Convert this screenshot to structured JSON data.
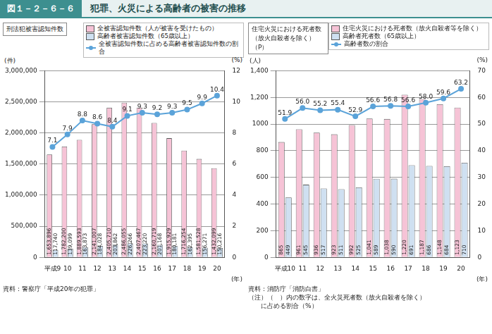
{
  "header": {
    "number": "図１－２－６－６",
    "title": "犯罪、火災による高齢者の被害の推移"
  },
  "chart_data": [
    {
      "type": "bar",
      "title": "刑法犯被害認知件数",
      "ylabel": "(件)",
      "y2label": "(%)",
      "xlabel": "(年)",
      "categories": [
        "平成9",
        "10",
        "11",
        "12",
        "13",
        "14",
        "15",
        "16",
        "17",
        "18",
        "19",
        "20"
      ],
      "series": [
        {
          "name": "全被害認知件数（人が被害を受けたもの）",
          "type": "bar",
          "color": "#f6c3d6",
          "values": [
            1653896,
            1782200,
            1889593,
            2141007,
            2405710,
            2486055,
            2407467,
            2160719,
            1915929,
            1716254,
            1581528,
            1432099
          ],
          "value_labels": [
            "1,653,896",
            "1,782,200",
            "1,889,593",
            "2,141,007",
            "2,405,710",
            "2,486,055",
            "2,407,467",
            "2,160,719",
            "1,915,929",
            "1,716,254",
            "1,581,528",
            "1,432,099"
          ]
        },
        {
          "name": "高齢者被害認知件数（65歳以上）",
          "type": "bar",
          "color": "#cfe0f1",
          "values": [
            117740,
            139099,
            163873,
            184028,
            203862,
            226266,
            223220,
            201168,
            180181,
            162395,
            156271,
            150216
          ],
          "value_labels": [
            "117,740",
            "139,099",
            "163,873",
            "184,028",
            "203,862",
            "226,266",
            "223,220",
            "201,168",
            "180,181",
            "162,395",
            "156,271",
            "150,216"
          ]
        },
        {
          "name": "全被害認知件数に占める高齢者被害認知件数の割合",
          "type": "line",
          "axis": "y2",
          "color": "#5ba3d9",
          "marker": "circle",
          "values": [
            7.1,
            7.9,
            8.8,
            8.6,
            8.4,
            9.1,
            9.3,
            9.2,
            9.3,
            9.5,
            9.9,
            10.4
          ],
          "value_labels": [
            "7.1",
            "7.9",
            "8.8",
            "8.6",
            "8.4",
            "9.1",
            "9.3",
            "9.2",
            "9.3",
            "9.5",
            "9.9",
            "10.4"
          ]
        }
      ],
      "ylim": [
        0,
        3000000
      ],
      "yticks": [
        0,
        {
          "value": 500000,
          "label": "500,000"
        },
        {
          "value": 1000000,
          "label": "1,000,000"
        },
        {
          "value": 1500000,
          "label": "1,500,000"
        },
        {
          "value": 2000000,
          "label": "2,000,000"
        },
        {
          "value": 2500000,
          "label": "2,500,000"
        },
        {
          "value": 3000000,
          "label": "3,000,000"
        }
      ],
      "y2lim": [
        0,
        12
      ],
      "y2ticks": [
        0,
        2,
        4,
        6,
        8,
        10,
        12
      ],
      "grid": true,
      "data_labels": true,
      "legend": "top-right",
      "annotations": [
        "資料：警察庁「平成20年の犯罪」"
      ]
    },
    {
      "type": "bar",
      "title": "住宅火災における死者数\n（放火自殺者を除く）（P）",
      "ylabel": "(人)",
      "y2label": "(%)",
      "xlabel": "(年)",
      "categories": [
        "平成10",
        "11",
        "12",
        "13",
        "14",
        "15",
        "16",
        "17",
        "18",
        "19",
        "20"
      ],
      "series": [
        {
          "name": "住宅火災における死者数（放火自殺者等を除く）",
          "type": "bar",
          "color": "#f6c3d6",
          "values": [
            865,
            961,
            936,
            923,
            992,
            1041,
            1038,
            1220,
            1187,
            1148,
            1123
          ],
          "value_labels": [
            "865",
            "961",
            "936",
            "923",
            "992",
            "1,041",
            "1,038",
            "1,220",
            "1,187",
            "1,148",
            "1,123"
          ]
        },
        {
          "name": "高齢者死者数（65歳以上）",
          "type": "bar",
          "color": "#cfe0f1",
          "values": [
            449,
            545,
            517,
            511,
            525,
            589,
            590,
            691,
            686,
            684,
            710
          ],
          "value_labels": [
            "449",
            "545",
            "517",
            "511",
            "525",
            "589",
            "590",
            "691",
            "686",
            "684",
            "710"
          ]
        },
        {
          "name": "高齢者数の割合",
          "type": "line",
          "axis": "y2",
          "color": "#5ba3d9",
          "marker": "circle",
          "values": [
            51.9,
            56.0,
            55.2,
            55.4,
            52.9,
            56.6,
            56.8,
            56.6,
            58.0,
            59.6,
            63.2
          ],
          "value_labels": [
            "51.9",
            "56.0",
            "55.2",
            "55.4",
            "52.9",
            "56.6",
            "56.8",
            "56.6",
            "58.0",
            "59.6",
            "63.2"
          ]
        }
      ],
      "ylim": [
        0,
        1400
      ],
      "yticks": [
        0,
        200,
        400,
        600,
        800,
        1000,
        {
          "value": 1200,
          "label": "1,200"
        },
        {
          "value": 1400,
          "label": "1,400"
        }
      ],
      "y2lim": [
        0,
        70
      ],
      "y2ticks": [
        0,
        10,
        20,
        30,
        40,
        50,
        60,
        70
      ],
      "grid": true,
      "data_labels": true,
      "legend": "top-right",
      "annotations": [
        "資料：消防庁「消防白書」",
        "（注）（　）内の数字は、全火災死者数（放火自殺者を除く）\n　　に占める割合（%）"
      ]
    }
  ]
}
